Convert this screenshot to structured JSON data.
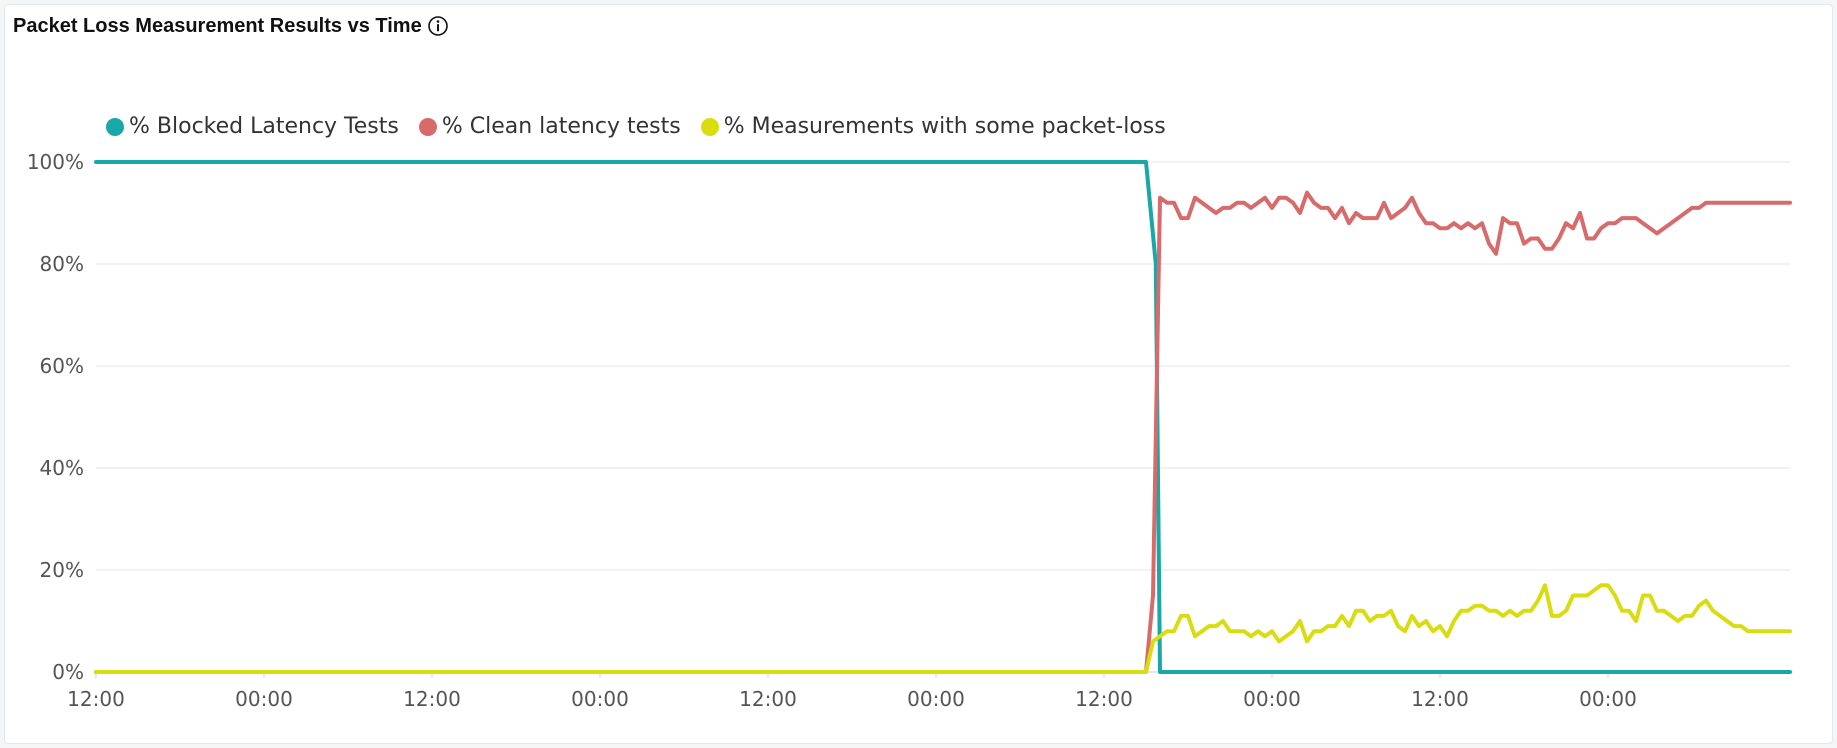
{
  "title": "Packet Loss Measurement Results vs Time",
  "colors": {
    "blocked": "#1aa7a7",
    "clean": "#d76a6a",
    "packet_loss": "#d9dd10",
    "grid": "#e5e5e5"
  },
  "chart_data": {
    "type": "line",
    "title": "Packet Loss Measurement Results vs Time",
    "xlabel": "",
    "ylabel": "",
    "ylim": [
      0,
      100
    ],
    "y_ticks": [
      "0%",
      "20%",
      "40%",
      "60%",
      "80%",
      "100%"
    ],
    "x_ticks": [
      "12:00",
      "00:00",
      "12:00",
      "00:00",
      "12:00",
      "00:00",
      "12:00",
      "00:00",
      "12:00",
      "00:00"
    ],
    "x_tick_hours": [
      0,
      12,
      24,
      36,
      48,
      60,
      72,
      84,
      96,
      108
    ],
    "xlim_hours": [
      0,
      121
    ],
    "x_unit": "hours from first 12:00",
    "grid": true,
    "legend_position": "top-left",
    "series": [
      {
        "name": "% Blocked Latency Tests",
        "color_key": "blocked",
        "points": [
          [
            0,
            100
          ],
          [
            75,
            100
          ],
          [
            75.7,
            80
          ],
          [
            76,
            0
          ],
          [
            121,
            0
          ]
        ]
      },
      {
        "name": "% Clean latency tests",
        "color_key": "clean",
        "points": [
          [
            0,
            0
          ],
          [
            75,
            0
          ],
          [
            75.5,
            15
          ],
          [
            76,
            93
          ],
          [
            76.5,
            92
          ],
          [
            77,
            92
          ],
          [
            77.5,
            89
          ],
          [
            78,
            89
          ],
          [
            78.5,
            93
          ],
          [
            79,
            92
          ],
          [
            79.5,
            91
          ],
          [
            80,
            90
          ],
          [
            80.5,
            91
          ],
          [
            81,
            91
          ],
          [
            81.5,
            92
          ],
          [
            82,
            92
          ],
          [
            82.5,
            91
          ],
          [
            83,
            92
          ],
          [
            83.5,
            93
          ],
          [
            84,
            91
          ],
          [
            84.5,
            93
          ],
          [
            85,
            93
          ],
          [
            85.5,
            92
          ],
          [
            86,
            90
          ],
          [
            86.5,
            94
          ],
          [
            87,
            92
          ],
          [
            87.5,
            91
          ],
          [
            88,
            91
          ],
          [
            88.5,
            89
          ],
          [
            89,
            91
          ],
          [
            89.5,
            88
          ],
          [
            90,
            90
          ],
          [
            90.5,
            89
          ],
          [
            91,
            89
          ],
          [
            91.5,
            89
          ],
          [
            92,
            92
          ],
          [
            92.5,
            89
          ],
          [
            93,
            90
          ],
          [
            93.5,
            91
          ],
          [
            94,
            93
          ],
          [
            94.5,
            90
          ],
          [
            95,
            88
          ],
          [
            95.5,
            88
          ],
          [
            96,
            87
          ],
          [
            96.5,
            87
          ],
          [
            97,
            88
          ],
          [
            97.5,
            87
          ],
          [
            98,
            88
          ],
          [
            98.5,
            87
          ],
          [
            99,
            88
          ],
          [
            99.5,
            84
          ],
          [
            100,
            82
          ],
          [
            100.5,
            89
          ],
          [
            101,
            88
          ],
          [
            101.5,
            88
          ],
          [
            102,
            84
          ],
          [
            102.5,
            85
          ],
          [
            103,
            85
          ],
          [
            103.5,
            83
          ],
          [
            104,
            83
          ],
          [
            104.5,
            85
          ],
          [
            105,
            88
          ],
          [
            105.5,
            87
          ],
          [
            106,
            90
          ],
          [
            106.5,
            85
          ],
          [
            107,
            85
          ],
          [
            107.5,
            87
          ],
          [
            108,
            88
          ],
          [
            108.5,
            88
          ],
          [
            109,
            89
          ],
          [
            109.5,
            89
          ],
          [
            110,
            89
          ],
          [
            110.5,
            88
          ],
          [
            111,
            87
          ],
          [
            111.5,
            86
          ],
          [
            112,
            87
          ],
          [
            112.5,
            88
          ],
          [
            113,
            89
          ],
          [
            113.5,
            90
          ],
          [
            114,
            91
          ],
          [
            114.5,
            91
          ],
          [
            115,
            92
          ],
          [
            121,
            92
          ]
        ]
      },
      {
        "name": "% Measurements with some packet-loss",
        "color_key": "packet_loss",
        "points": [
          [
            0,
            0
          ],
          [
            75,
            0
          ],
          [
            75.5,
            6
          ],
          [
            76,
            7
          ],
          [
            76.5,
            8
          ],
          [
            77,
            8
          ],
          [
            77.5,
            11
          ],
          [
            78,
            11
          ],
          [
            78.5,
            7
          ],
          [
            79,
            8
          ],
          [
            79.5,
            9
          ],
          [
            80,
            9
          ],
          [
            80.5,
            10
          ],
          [
            81,
            8
          ],
          [
            81.5,
            8
          ],
          [
            82,
            8
          ],
          [
            82.5,
            7
          ],
          [
            83,
            8
          ],
          [
            83.5,
            7
          ],
          [
            84,
            8
          ],
          [
            84.5,
            6
          ],
          [
            85,
            7
          ],
          [
            85.5,
            8
          ],
          [
            86,
            10
          ],
          [
            86.5,
            6
          ],
          [
            87,
            8
          ],
          [
            87.5,
            8
          ],
          [
            88,
            9
          ],
          [
            88.5,
            9
          ],
          [
            89,
            11
          ],
          [
            89.5,
            9
          ],
          [
            90,
            12
          ],
          [
            90.5,
            12
          ],
          [
            91,
            10
          ],
          [
            91.5,
            11
          ],
          [
            92,
            11
          ],
          [
            92.5,
            12
          ],
          [
            93,
            9
          ],
          [
            93.5,
            8
          ],
          [
            94,
            11
          ],
          [
            94.5,
            9
          ],
          [
            95,
            10
          ],
          [
            95.5,
            8
          ],
          [
            96,
            9
          ],
          [
            96.5,
            7
          ],
          [
            97,
            10
          ],
          [
            97.5,
            12
          ],
          [
            98,
            12
          ],
          [
            98.5,
            13
          ],
          [
            99,
            13
          ],
          [
            99.5,
            12
          ],
          [
            100,
            12
          ],
          [
            100.5,
            11
          ],
          [
            101,
            12
          ],
          [
            101.5,
            11
          ],
          [
            102,
            12
          ],
          [
            102.5,
            12
          ],
          [
            103,
            14
          ],
          [
            103.5,
            17
          ],
          [
            104,
            11
          ],
          [
            104.5,
            11
          ],
          [
            105,
            12
          ],
          [
            105.5,
            15
          ],
          [
            106,
            15
          ],
          [
            106.5,
            15
          ],
          [
            107,
            16
          ],
          [
            107.5,
            17
          ],
          [
            108,
            17
          ],
          [
            108.5,
            15
          ],
          [
            109,
            12
          ],
          [
            109.5,
            12
          ],
          [
            110,
            10
          ],
          [
            110.5,
            15
          ],
          [
            111,
            15
          ],
          [
            111.5,
            12
          ],
          [
            112,
            12
          ],
          [
            112.5,
            11
          ],
          [
            113,
            10
          ],
          [
            113.5,
            11
          ],
          [
            114,
            11
          ],
          [
            114.5,
            13
          ],
          [
            115,
            14
          ],
          [
            115.5,
            12
          ],
          [
            116,
            11
          ],
          [
            116.5,
            10
          ],
          [
            117,
            9
          ],
          [
            117.5,
            9
          ],
          [
            118,
            8
          ],
          [
            121,
            8
          ]
        ]
      }
    ]
  }
}
